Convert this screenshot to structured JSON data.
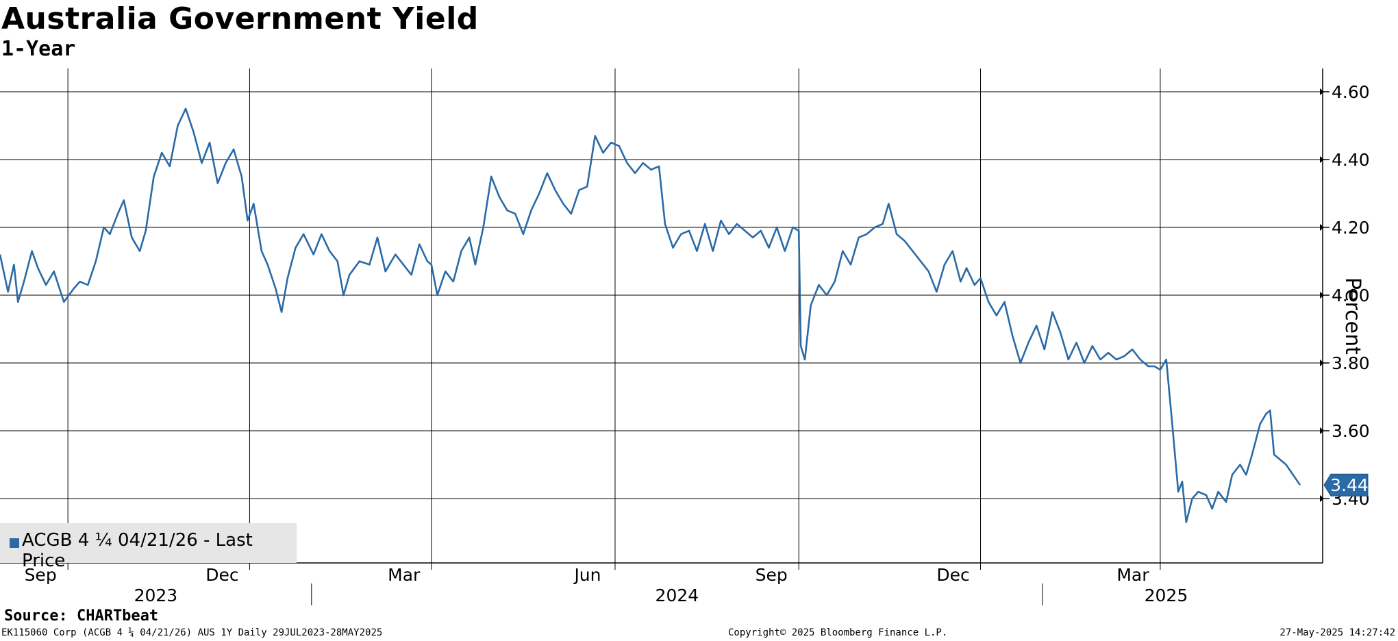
{
  "title": "Australia Government Yield",
  "subtitle": "1-Year",
  "source": "Source: CHARTbeat",
  "footer": {
    "left": "EK115060 Corp (ACGB 4 ¼ 04/21/26) AUS 1Y  Daily 29JUL2023-28MAY2025",
    "center": "Copyright© 2025 Bloomberg Finance L.P.",
    "right": "27-May-2025 14:27:42"
  },
  "legend": {
    "label": "ACGB 4 ¼  04/21/26 - Last Price"
  },
  "chart_data": {
    "type": "line",
    "title": "Australia Government Yield",
    "subtitle": "1-Year",
    "ylabel": "Percent",
    "ylim": [
      3.2,
      4.67
    ],
    "yticks": [
      3.4,
      3.6,
      3.8,
      4.0,
      4.2,
      4.4,
      4.6
    ],
    "ytick_labels": [
      "3.40",
      "3.60",
      "3.80",
      "4.00",
      "4.20",
      "4.40",
      "4.60"
    ],
    "xlim": [
      "2023-07-29",
      "2025-05-28"
    ],
    "month_ticks": [
      {
        "date": "2023-09-01",
        "label": "Sep"
      },
      {
        "date": "2023-12-01",
        "label": "Dec"
      },
      {
        "date": "2024-03-01",
        "label": "Mar"
      },
      {
        "date": "2024-06-01",
        "label": "Jun"
      },
      {
        "date": "2024-09-01",
        "label": "Sep"
      },
      {
        "date": "2024-12-01",
        "label": "Dec"
      },
      {
        "date": "2025-03-01",
        "label": "Mar"
      }
    ],
    "year_labels": [
      {
        "label": "2023",
        "start": "2023-07-29",
        "end": "2024-01-01"
      },
      {
        "label": "2024",
        "start": "2024-01-01",
        "end": "2025-01-01"
      },
      {
        "label": "2025",
        "start": "2025-01-01",
        "end": "2025-05-28"
      }
    ],
    "grid": true,
    "legend_position": "bottom-left",
    "last_value": 3.44,
    "last_value_label": "3.44",
    "series": [
      {
        "name": "ACGB 4 ¼  04/21/26 - Last Price",
        "color": "#2a6aa6",
        "points": [
          [
            "2023-07-29",
            4.12
          ],
          [
            "2023-08-02",
            4.01
          ],
          [
            "2023-08-05",
            4.09
          ],
          [
            "2023-08-07",
            3.98
          ],
          [
            "2023-08-10",
            4.04
          ],
          [
            "2023-08-14",
            4.13
          ],
          [
            "2023-08-17",
            4.08
          ],
          [
            "2023-08-21",
            4.03
          ],
          [
            "2023-08-25",
            4.07
          ],
          [
            "2023-08-30",
            3.98
          ],
          [
            "2023-09-04",
            4.02
          ],
          [
            "2023-09-07",
            4.04
          ],
          [
            "2023-09-11",
            4.03
          ],
          [
            "2023-09-15",
            4.1
          ],
          [
            "2023-09-19",
            4.2
          ],
          [
            "2023-09-22",
            4.18
          ],
          [
            "2023-09-26",
            4.24
          ],
          [
            "2023-09-29",
            4.28
          ],
          [
            "2023-10-03",
            4.17
          ],
          [
            "2023-10-07",
            4.13
          ],
          [
            "2023-10-10",
            4.19
          ],
          [
            "2023-10-14",
            4.35
          ],
          [
            "2023-10-18",
            4.42
          ],
          [
            "2023-10-22",
            4.38
          ],
          [
            "2023-10-26",
            4.5
          ],
          [
            "2023-10-30",
            4.55
          ],
          [
            "2023-11-03",
            4.48
          ],
          [
            "2023-11-07",
            4.39
          ],
          [
            "2023-11-11",
            4.45
          ],
          [
            "2023-11-15",
            4.33
          ],
          [
            "2023-11-19",
            4.39
          ],
          [
            "2023-11-23",
            4.43
          ],
          [
            "2023-11-27",
            4.35
          ],
          [
            "2023-11-30",
            4.22
          ],
          [
            "2023-12-03",
            4.27
          ],
          [
            "2023-12-07",
            4.13
          ],
          [
            "2023-12-10",
            4.09
          ],
          [
            "2023-12-14",
            4.02
          ],
          [
            "2023-12-17",
            3.95
          ],
          [
            "2023-12-20",
            4.05
          ],
          [
            "2023-12-24",
            4.14
          ],
          [
            "2023-12-28",
            4.18
          ],
          [
            "2024-01-02",
            4.12
          ],
          [
            "2024-01-06",
            4.18
          ],
          [
            "2024-01-10",
            4.13
          ],
          [
            "2024-01-14",
            4.1
          ],
          [
            "2024-01-17",
            4.0
          ],
          [
            "2024-01-20",
            4.06
          ],
          [
            "2024-01-25",
            4.1
          ],
          [
            "2024-01-30",
            4.09
          ],
          [
            "2024-02-03",
            4.17
          ],
          [
            "2024-02-07",
            4.07
          ],
          [
            "2024-02-12",
            4.12
          ],
          [
            "2024-02-16",
            4.09
          ],
          [
            "2024-02-20",
            4.06
          ],
          [
            "2024-02-24",
            4.15
          ],
          [
            "2024-02-28",
            4.1
          ],
          [
            "2024-03-01",
            4.09
          ],
          [
            "2024-03-04",
            4.0
          ],
          [
            "2024-03-08",
            4.07
          ],
          [
            "2024-03-12",
            4.04
          ],
          [
            "2024-03-16",
            4.13
          ],
          [
            "2024-03-20",
            4.17
          ],
          [
            "2024-03-23",
            4.09
          ],
          [
            "2024-03-27",
            4.2
          ],
          [
            "2024-03-31",
            4.35
          ],
          [
            "2024-04-04",
            4.29
          ],
          [
            "2024-04-08",
            4.25
          ],
          [
            "2024-04-12",
            4.24
          ],
          [
            "2024-04-16",
            4.18
          ],
          [
            "2024-04-20",
            4.25
          ],
          [
            "2024-04-24",
            4.3
          ],
          [
            "2024-04-28",
            4.36
          ],
          [
            "2024-05-02",
            4.31
          ],
          [
            "2024-05-06",
            4.27
          ],
          [
            "2024-05-10",
            4.24
          ],
          [
            "2024-05-14",
            4.31
          ],
          [
            "2024-05-18",
            4.32
          ],
          [
            "2024-05-22",
            4.47
          ],
          [
            "2024-05-26",
            4.42
          ],
          [
            "2024-05-30",
            4.45
          ],
          [
            "2024-06-03",
            4.44
          ],
          [
            "2024-06-07",
            4.39
          ],
          [
            "2024-06-11",
            4.36
          ],
          [
            "2024-06-15",
            4.39
          ],
          [
            "2024-06-19",
            4.37
          ],
          [
            "2024-06-23",
            4.38
          ],
          [
            "2024-06-26",
            4.21
          ],
          [
            "2024-06-30",
            4.14
          ],
          [
            "2024-07-04",
            4.18
          ],
          [
            "2024-07-08",
            4.19
          ],
          [
            "2024-07-12",
            4.13
          ],
          [
            "2024-07-16",
            4.21
          ],
          [
            "2024-07-20",
            4.13
          ],
          [
            "2024-07-24",
            4.22
          ],
          [
            "2024-07-28",
            4.18
          ],
          [
            "2024-08-01",
            4.21
          ],
          [
            "2024-08-05",
            4.19
          ],
          [
            "2024-08-09",
            4.17
          ],
          [
            "2024-08-13",
            4.19
          ],
          [
            "2024-08-17",
            4.14
          ],
          [
            "2024-08-21",
            4.2
          ],
          [
            "2024-08-25",
            4.13
          ],
          [
            "2024-08-29",
            4.2
          ],
          [
            "2024-09-01",
            4.19
          ],
          [
            "2024-09-02",
            3.85
          ],
          [
            "2024-09-04",
            3.81
          ],
          [
            "2024-09-07",
            3.97
          ],
          [
            "2024-09-11",
            4.03
          ],
          [
            "2024-09-15",
            4.0
          ],
          [
            "2024-09-19",
            4.04
          ],
          [
            "2024-09-23",
            4.13
          ],
          [
            "2024-09-27",
            4.09
          ],
          [
            "2024-10-01",
            4.17
          ],
          [
            "2024-10-05",
            4.18
          ],
          [
            "2024-10-09",
            4.2
          ],
          [
            "2024-10-13",
            4.21
          ],
          [
            "2024-10-16",
            4.27
          ],
          [
            "2024-10-20",
            4.18
          ],
          [
            "2024-10-24",
            4.16
          ],
          [
            "2024-10-28",
            4.13
          ],
          [
            "2024-11-01",
            4.1
          ],
          [
            "2024-11-05",
            4.07
          ],
          [
            "2024-11-09",
            4.01
          ],
          [
            "2024-11-13",
            4.09
          ],
          [
            "2024-11-17",
            4.13
          ],
          [
            "2024-11-21",
            4.04
          ],
          [
            "2024-11-24",
            4.08
          ],
          [
            "2024-11-28",
            4.03
          ],
          [
            "2024-12-01",
            4.05
          ],
          [
            "2024-12-05",
            3.98
          ],
          [
            "2024-12-09",
            3.94
          ],
          [
            "2024-12-13",
            3.98
          ],
          [
            "2024-12-17",
            3.88
          ],
          [
            "2024-12-21",
            3.8
          ],
          [
            "2024-12-25",
            3.86
          ],
          [
            "2024-12-29",
            3.91
          ],
          [
            "2025-01-02",
            3.84
          ],
          [
            "2025-01-06",
            3.95
          ],
          [
            "2025-01-10",
            3.89
          ],
          [
            "2025-01-14",
            3.81
          ],
          [
            "2025-01-18",
            3.86
          ],
          [
            "2025-01-22",
            3.8
          ],
          [
            "2025-01-26",
            3.85
          ],
          [
            "2025-01-30",
            3.81
          ],
          [
            "2025-02-03",
            3.83
          ],
          [
            "2025-02-07",
            3.81
          ],
          [
            "2025-02-11",
            3.82
          ],
          [
            "2025-02-15",
            3.84
          ],
          [
            "2025-02-19",
            3.81
          ],
          [
            "2025-02-23",
            3.79
          ],
          [
            "2025-02-26",
            3.79
          ],
          [
            "2025-03-01",
            3.78
          ],
          [
            "2025-03-04",
            3.81
          ],
          [
            "2025-03-07",
            3.62
          ],
          [
            "2025-03-10",
            3.42
          ],
          [
            "2025-03-12",
            3.45
          ],
          [
            "2025-03-14",
            3.33
          ],
          [
            "2025-03-17",
            3.4
          ],
          [
            "2025-03-20",
            3.42
          ],
          [
            "2025-03-24",
            3.41
          ],
          [
            "2025-03-27",
            3.37
          ],
          [
            "2025-03-30",
            3.42
          ],
          [
            "2025-04-03",
            3.39
          ],
          [
            "2025-04-06",
            3.47
          ],
          [
            "2025-04-10",
            3.5
          ],
          [
            "2025-04-13",
            3.47
          ],
          [
            "2025-04-16",
            3.53
          ],
          [
            "2025-04-20",
            3.62
          ],
          [
            "2025-04-23",
            3.65
          ],
          [
            "2025-04-25",
            3.66
          ],
          [
            "2025-04-27",
            3.53
          ],
          [
            "2025-05-03",
            3.5
          ],
          [
            "2025-05-10",
            3.44
          ]
        ]
      }
    ]
  }
}
